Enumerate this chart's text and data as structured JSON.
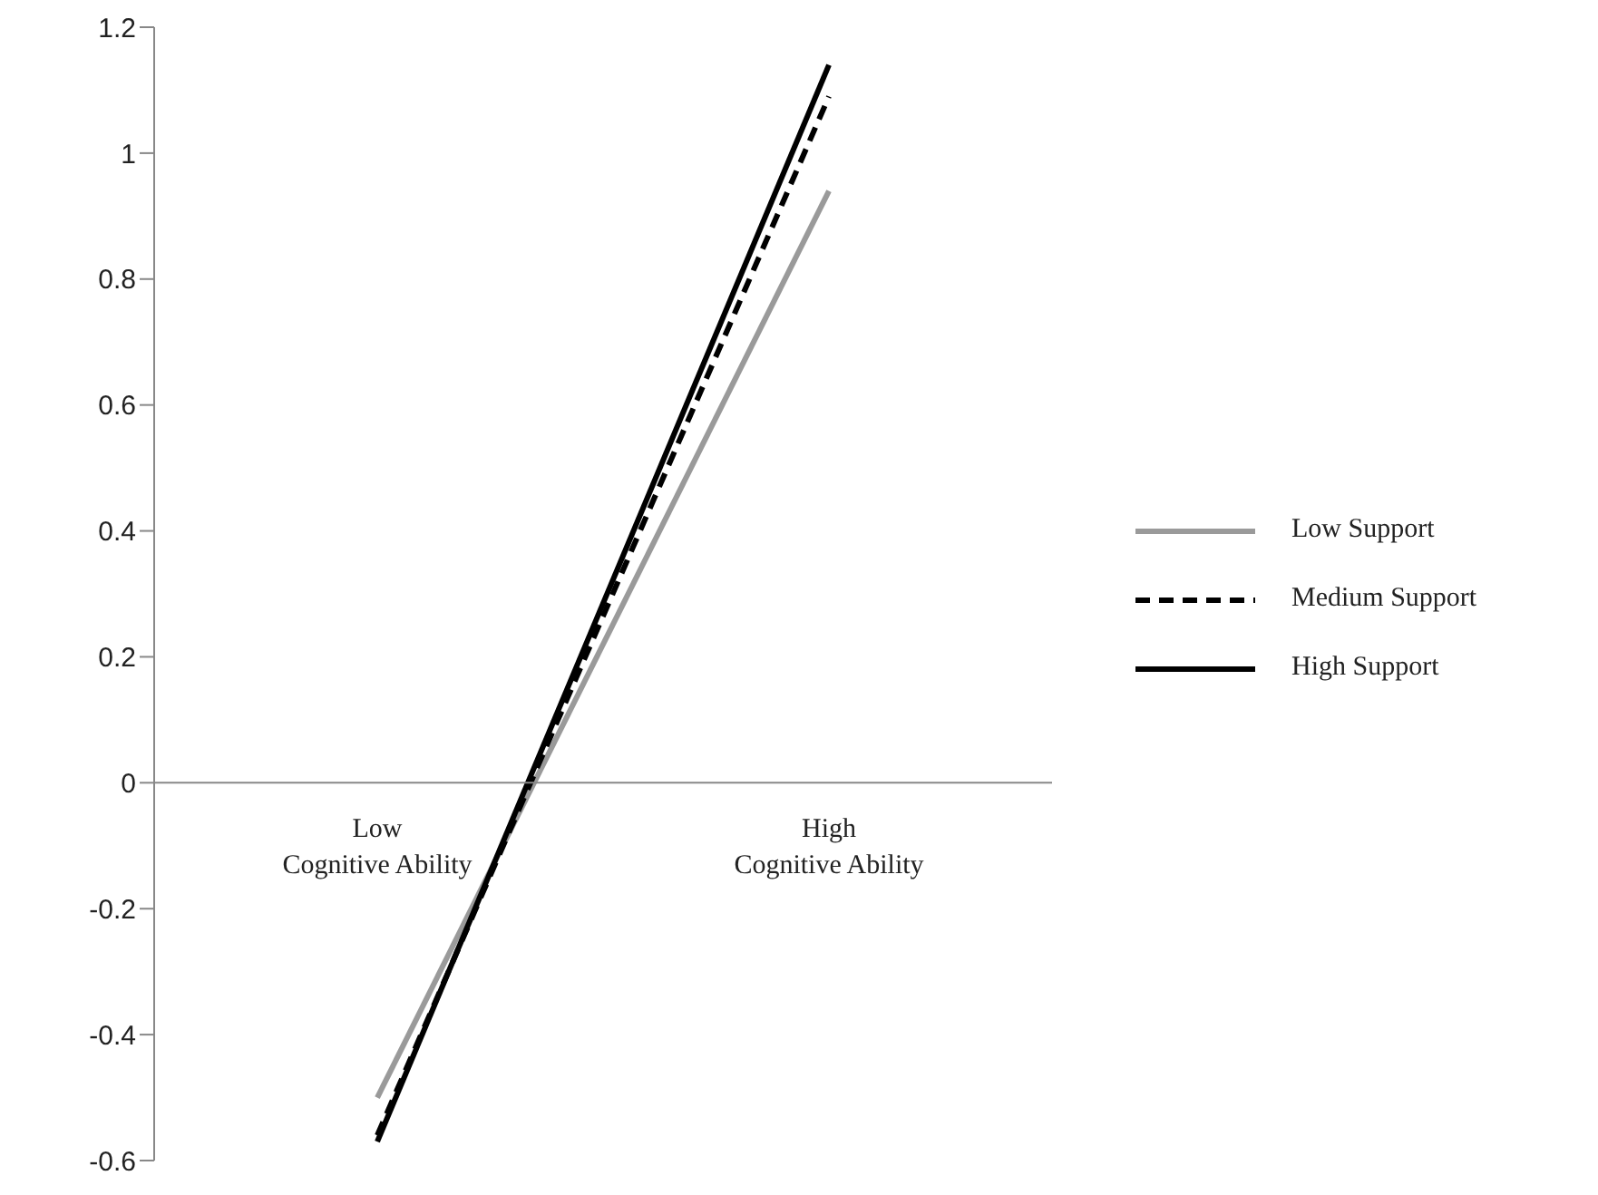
{
  "chart_data": {
    "type": "line",
    "categories": [
      "Low Cognitive Ability",
      "High Cognitive Ability"
    ],
    "series": [
      {
        "name": "Low Support",
        "color": "#9a9a9a",
        "values": [
          -0.5,
          0.94
        ],
        "line_style": "solid"
      },
      {
        "name": "Medium Support",
        "color": "#000000",
        "values": [
          -0.56,
          1.09
        ],
        "line_style": "dashed"
      },
      {
        "name": "High Support",
        "color": "#000000",
        "values": [
          -0.57,
          1.14
        ],
        "line_style": "solid"
      }
    ],
    "ylim": [
      -0.6,
      1.2
    ],
    "yticks": [
      -0.6,
      -0.4,
      -0.2,
      0,
      0.2,
      0.4,
      0.6,
      0.8,
      1,
      1.2
    ],
    "grid": false,
    "legend": "right",
    "marker": "none"
  }
}
